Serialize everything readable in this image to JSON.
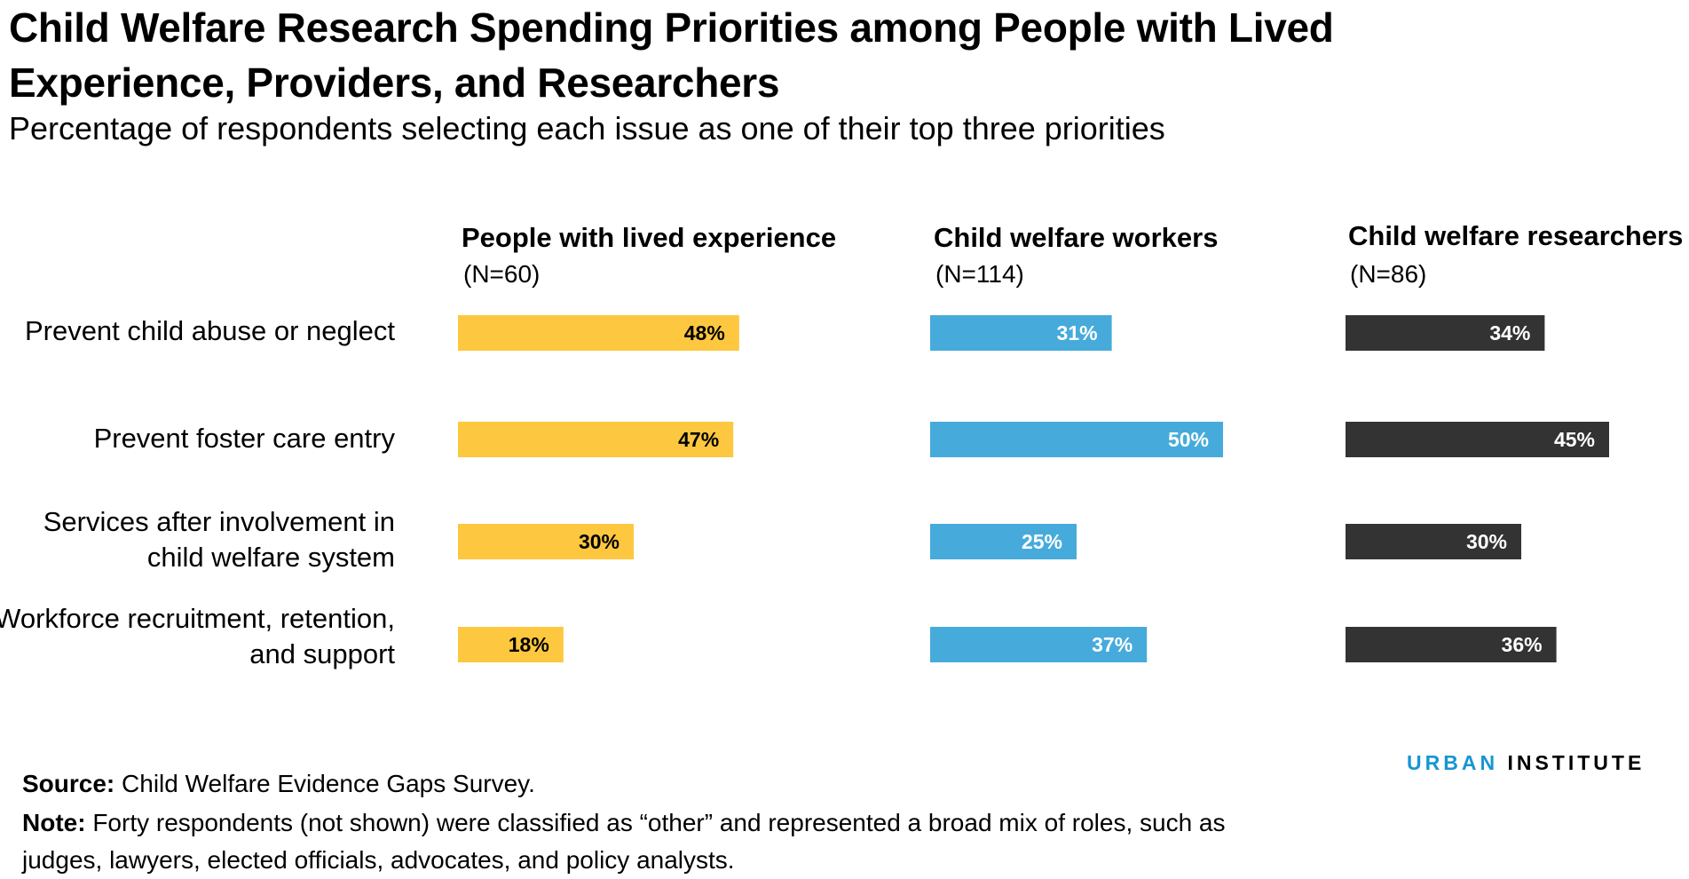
{
  "title": "Child Welfare Research Spending Priorities among People with Lived Experience, Providers, and Researchers",
  "subtitle": "Percentage of respondents selecting each issue as one of their top three priorities",
  "colors": {
    "lived": "#fdc73f",
    "workers": "#46abdb",
    "researchers": "#333333",
    "label_on_light": "#000000",
    "label_on_dark": "#ffffff",
    "brand_accent": "#1696d2"
  },
  "chart_data": {
    "type": "bar",
    "orientation": "horizontal",
    "layout": "small-multiples",
    "categories": [
      "Prevent child abuse or neglect",
      "Prevent foster care entry",
      "Services after involvement in child welfare system",
      "Workforce recruitment, retention, and support"
    ],
    "series": [
      {
        "name": "People with lived experience",
        "n": "(N=60)",
        "values": [
          48,
          47,
          30,
          18
        ],
        "labels": [
          "48%",
          "47%",
          "30%",
          "18%"
        ]
      },
      {
        "name": "Child welfare workers",
        "n": "(N=114)",
        "values": [
          31,
          50,
          25,
          37
        ],
        "labels": [
          "31%",
          "50%",
          "25%",
          "37%"
        ]
      },
      {
        "name": "Child welfare researchers",
        "n": "(N=86)",
        "values": [
          34,
          45,
          30,
          36
        ],
        "labels": [
          "34%",
          "45%",
          "30%",
          "36%"
        ]
      }
    ],
    "unit": "%",
    "grid": false,
    "legend": "none"
  },
  "brand": {
    "part1": "URBAN",
    "part2": "INSTITUTE"
  },
  "footer": {
    "source_label": "Source:",
    "source_text": "Child Welfare Evidence Gaps Survey.",
    "note_label": "Note:",
    "note_text_line1": "Forty respondents (not shown) were classified as “other” and represented a broad mix of roles, such as",
    "note_text_line2": "judges, lawyers, elected officials, advocates, and policy analysts."
  }
}
